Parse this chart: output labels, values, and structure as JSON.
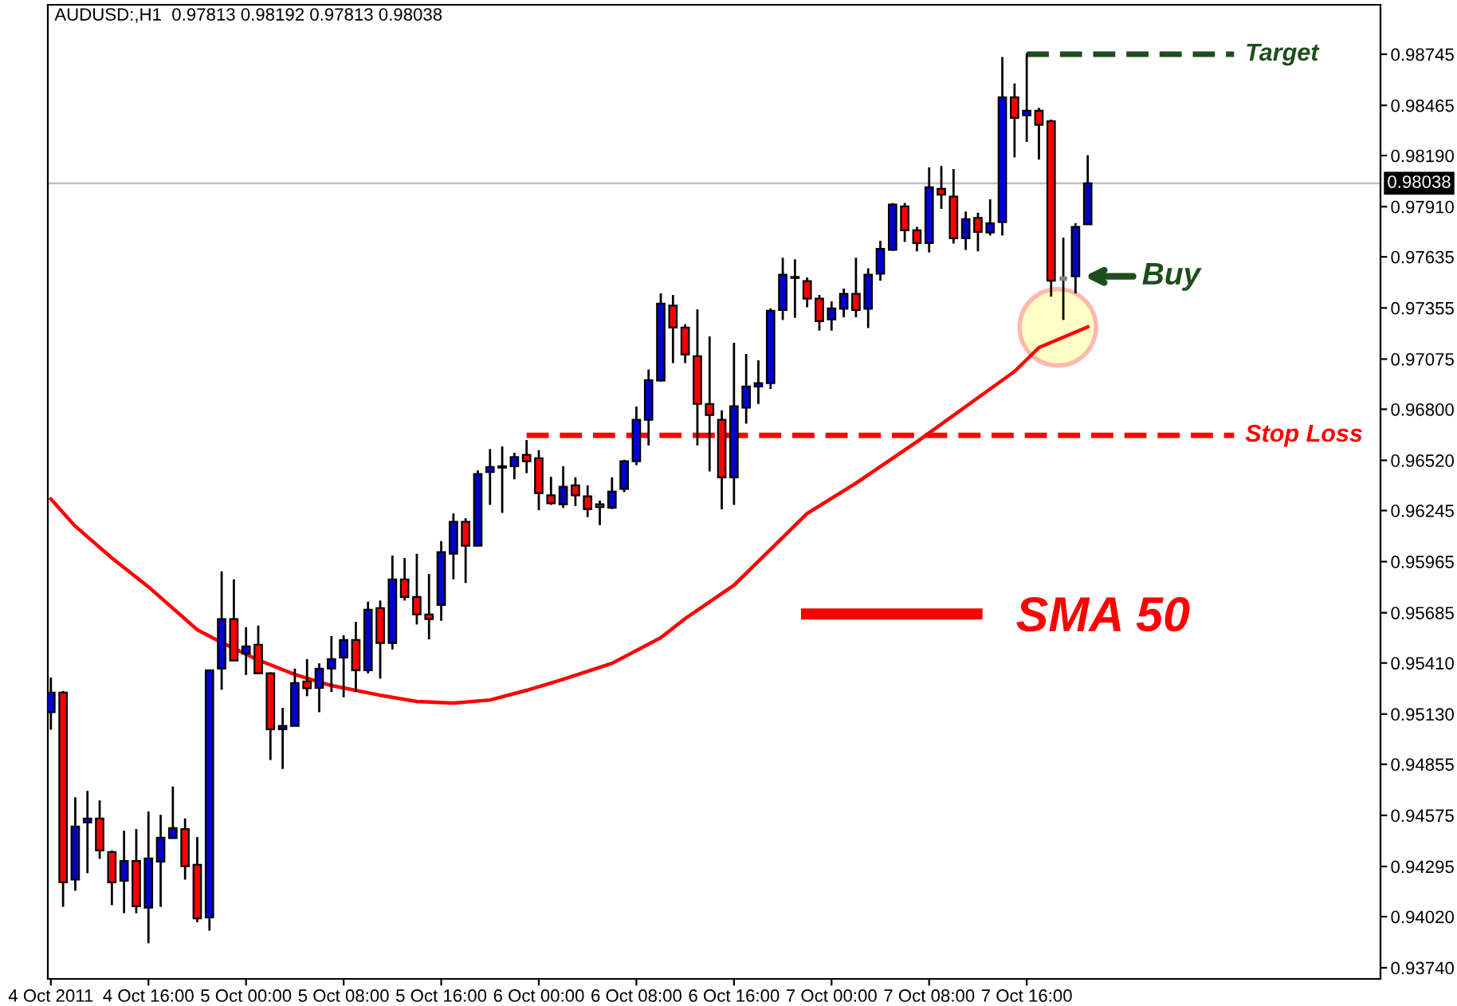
{
  "chart_data": {
    "type": "candlestick",
    "title": "AUDUSD:,H1  0.97813 0.98192 0.97813 0.98038",
    "x": [
      "2011-10-04T08:00",
      "2011-10-04T09:00",
      "2011-10-04T10:00",
      "2011-10-04T11:00",
      "2011-10-04T12:00",
      "2011-10-04T13:00",
      "2011-10-04T14:00",
      "2011-10-04T15:00",
      "2011-10-04T16:00",
      "2011-10-04T17:00",
      "2011-10-04T18:00",
      "2011-10-04T19:00",
      "2011-10-04T20:00",
      "2011-10-04T21:00",
      "2011-10-04T22:00",
      "2011-10-04T23:00",
      "2011-10-05T00:00",
      "2011-10-05T01:00",
      "2011-10-05T02:00",
      "2011-10-05T03:00",
      "2011-10-05T04:00",
      "2011-10-05T05:00",
      "2011-10-05T06:00",
      "2011-10-05T07:00",
      "2011-10-05T08:00",
      "2011-10-05T09:00",
      "2011-10-05T10:00",
      "2011-10-05T11:00",
      "2011-10-05T12:00",
      "2011-10-05T13:00",
      "2011-10-05T14:00",
      "2011-10-05T15:00",
      "2011-10-05T16:00",
      "2011-10-05T17:00",
      "2011-10-05T18:00",
      "2011-10-05T19:00",
      "2011-10-05T20:00",
      "2011-10-05T21:00",
      "2011-10-05T22:00",
      "2011-10-05T23:00",
      "2011-10-06T00:00",
      "2011-10-06T01:00",
      "2011-10-06T02:00",
      "2011-10-06T03:00",
      "2011-10-06T04:00",
      "2011-10-06T05:00",
      "2011-10-06T06:00",
      "2011-10-06T07:00",
      "2011-10-06T08:00",
      "2011-10-06T09:00",
      "2011-10-06T10:00",
      "2011-10-06T11:00",
      "2011-10-06T12:00",
      "2011-10-06T13:00",
      "2011-10-06T14:00",
      "2011-10-06T15:00",
      "2011-10-06T16:00",
      "2011-10-06T17:00",
      "2011-10-06T18:00",
      "2011-10-06T19:00",
      "2011-10-06T20:00",
      "2011-10-06T21:00",
      "2011-10-06T22:00",
      "2011-10-06T23:00",
      "2011-10-07T00:00",
      "2011-10-07T01:00",
      "2011-10-07T02:00",
      "2011-10-07T03:00",
      "2011-10-07T04:00",
      "2011-10-07T05:00",
      "2011-10-07T06:00",
      "2011-10-07T07:00",
      "2011-10-07T08:00",
      "2011-10-07T09:00",
      "2011-10-07T10:00",
      "2011-10-07T11:00",
      "2011-10-07T12:00",
      "2011-10-07T13:00",
      "2011-10-07T14:00",
      "2011-10-07T15:00",
      "2011-10-07T16:00",
      "2011-10-07T17:00",
      "2011-10-07T18:00",
      "2011-10-07T19:00",
      "2011-10-07T20:00",
      "2011-10-07T21:00"
    ],
    "ohlc": [
      [
        0.9514,
        0.9533,
        0.95044,
        0.95248
      ],
      [
        0.95248,
        0.95257,
        0.94074,
        0.94208
      ],
      [
        0.94223,
        0.94674,
        0.94162,
        0.94514
      ],
      [
        0.94537,
        0.94709,
        0.94258,
        0.94558
      ],
      [
        0.94558,
        0.94657,
        0.94337,
        0.94383
      ],
      [
        0.94374,
        0.94383,
        0.94083,
        0.94208
      ],
      [
        0.94217,
        0.94491,
        0.94039,
        0.94325
      ],
      [
        0.94325,
        0.945,
        0.94039,
        0.94077
      ],
      [
        0.94069,
        0.94596,
        0.93874,
        0.94339
      ],
      [
        0.94322,
        0.94578,
        0.94074,
        0.94453
      ],
      [
        0.9445,
        0.94733,
        0.9445,
        0.94505
      ],
      [
        0.945,
        0.94558,
        0.94223,
        0.94296
      ],
      [
        0.94304,
        0.94456,
        0.9399,
        0.9401
      ],
      [
        0.94016,
        0.9537,
        0.93943,
        0.9537
      ],
      [
        0.95379,
        0.95912,
        0.95263,
        0.9565
      ],
      [
        0.9565,
        0.95868,
        0.95423,
        0.95423
      ],
      [
        0.95461,
        0.95606,
        0.95344,
        0.95501
      ],
      [
        0.9551,
        0.95615,
        0.95353,
        0.95353
      ],
      [
        0.95353,
        0.95358,
        0.94878,
        0.95047
      ],
      [
        0.95047,
        0.95164,
        0.94829,
        0.95065
      ],
      [
        0.95065,
        0.95379,
        0.95065,
        0.953
      ],
      [
        0.95309,
        0.95431,
        0.95228,
        0.95271
      ],
      [
        0.95274,
        0.95408,
        0.9514,
        0.95379
      ],
      [
        0.95379,
        0.95557,
        0.95251,
        0.95431
      ],
      [
        0.9544,
        0.95562,
        0.95222,
        0.95536
      ],
      [
        0.95536,
        0.95635,
        0.95251,
        0.9537
      ],
      [
        0.9537,
        0.95746,
        0.95353,
        0.95702
      ],
      [
        0.95711,
        0.95752,
        0.95324,
        0.95519
      ],
      [
        0.95519,
        0.95999,
        0.95484,
        0.95868
      ],
      [
        0.95868,
        0.95985,
        0.95752,
        0.95772
      ],
      [
        0.95772,
        0.96008,
        0.95621,
        0.95676
      ],
      [
        0.95676,
        0.95897,
        0.95539,
        0.9565
      ],
      [
        0.95728,
        0.96078,
        0.95641,
        0.96017
      ],
      [
        0.96008,
        0.96229,
        0.95868,
        0.96183
      ],
      [
        0.96183,
        0.96203,
        0.95848,
        0.96052
      ],
      [
        0.96052,
        0.96465,
        0.96052,
        0.96445
      ],
      [
        0.96456,
        0.96582,
        0.96276,
        0.96483
      ],
      [
        0.9648,
        0.96596,
        0.96232,
        0.96488
      ],
      [
        0.96488,
        0.96561,
        0.96416,
        0.96538
      ],
      [
        0.9655,
        0.96631,
        0.9645,
        0.96515
      ],
      [
        0.96532,
        0.96576,
        0.96247,
        0.9634
      ],
      [
        0.96328,
        0.9643,
        0.96276,
        0.96285
      ],
      [
        0.96279,
        0.96488,
        0.96259,
        0.96375
      ],
      [
        0.96383,
        0.96427,
        0.9627,
        0.96328
      ],
      [
        0.96323,
        0.96383,
        0.96209,
        0.96253
      ],
      [
        0.96279,
        0.96299,
        0.96165,
        0.96264
      ],
      [
        0.96261,
        0.96427,
        0.96253,
        0.96349
      ],
      [
        0.96363,
        0.96523,
        0.96346,
        0.96515
      ],
      [
        0.96515,
        0.96815,
        0.96494,
        0.96742
      ],
      [
        0.96742,
        0.97018,
        0.96602,
        0.9696
      ],
      [
        0.96957,
        0.97435,
        0.96951,
        0.97379
      ],
      [
        0.97368,
        0.97426,
        0.97053,
        0.97248
      ],
      [
        0.97248,
        0.97266,
        0.97053,
        0.971
      ],
      [
        0.97091,
        0.97347,
        0.96602,
        0.96829
      ],
      [
        0.96829,
        0.97199,
        0.96459,
        0.96768
      ],
      [
        0.96742,
        0.96794,
        0.96252,
        0.96427
      ],
      [
        0.96427,
        0.97164,
        0.96276,
        0.96817
      ],
      [
        0.96809,
        0.97103,
        0.96721,
        0.96925
      ],
      [
        0.96925,
        0.97068,
        0.96829,
        0.96943
      ],
      [
        0.96943,
        0.97353,
        0.96911,
        0.97339
      ],
      [
        0.97344,
        0.9763,
        0.97289,
        0.97537
      ],
      [
        0.97519,
        0.97621,
        0.97301,
        0.97525
      ],
      [
        0.97502,
        0.97522,
        0.97359,
        0.97406
      ],
      [
        0.97406,
        0.97426,
        0.97231,
        0.97283
      ],
      [
        0.97292,
        0.97391,
        0.97231,
        0.97353
      ],
      [
        0.9735,
        0.97461,
        0.97304,
        0.97432
      ],
      [
        0.97432,
        0.9763,
        0.97304,
        0.97344
      ],
      [
        0.9735,
        0.97572,
        0.97245,
        0.97537
      ],
      [
        0.97542,
        0.97723,
        0.97504,
        0.97679
      ],
      [
        0.97673,
        0.9793,
        0.97668,
        0.97921
      ],
      [
        0.97912,
        0.9793,
        0.97717,
        0.97781
      ],
      [
        0.97781,
        0.97799,
        0.97665,
        0.97711
      ],
      [
        0.97711,
        0.98125,
        0.97659,
        0.98017
      ],
      [
        0.98008,
        0.98133,
        0.97898,
        0.97976
      ],
      [
        0.97965,
        0.98116,
        0.97708,
        0.97737
      ],
      [
        0.97737,
        0.97883,
        0.97673,
        0.97842
      ],
      [
        0.97848,
        0.97877,
        0.97665,
        0.97772
      ],
      [
        0.97769,
        0.9795,
        0.97752,
        0.97819
      ],
      [
        0.97825,
        0.9873,
        0.97752,
        0.98509
      ],
      [
        0.98509,
        0.98585,
        0.9818,
        0.98396
      ],
      [
        0.9841,
        0.98751,
        0.98265,
        0.98436
      ],
      [
        0.98436,
        0.98451,
        0.98168,
        0.98358
      ],
      [
        0.98378,
        0.98387,
        0.97417,
        0.97504
      ],
      [
        0.97516,
        0.9774,
        0.97289,
        0.97516
      ],
      [
        0.97528,
        0.97819,
        0.97435,
        0.97799
      ],
      [
        0.97813,
        0.98192,
        0.97813,
        0.98038
      ]
    ],
    "colors": [
      "#0000cc",
      "#ff0000",
      "#0000cc",
      "#0000cc",
      "#ff0000",
      "#ff0000",
      "#0000cc",
      "#ff0000",
      "#0000cc",
      "#0000cc",
      "#0000cc",
      "#ff0000",
      "#ff0000",
      "#0000cc",
      "#0000cc",
      "#ff0000",
      "#0000cc",
      "#ff0000",
      "#ff0000",
      "#0000cc",
      "#0000cc",
      "#ff0000",
      "#0000cc",
      "#0000cc",
      "#0000cc",
      "#ff0000",
      "#0000cc",
      "#ff0000",
      "#0000cc",
      "#ff0000",
      "#ff0000",
      "#ff0000",
      "#0000cc",
      "#0000cc",
      "#ff0000",
      "#0000cc",
      "#0000cc",
      "#0000cc",
      "#0000cc",
      "#ff0000",
      "#ff0000",
      "#ff0000",
      "#0000cc",
      "#ff0000",
      "#ff0000",
      "#ff0000",
      "#0000cc",
      "#0000cc",
      "#0000cc",
      "#0000cc",
      "#0000cc",
      "#ff0000",
      "#ff0000",
      "#ff0000",
      "#ff0000",
      "#ff0000",
      "#0000cc",
      "#0000cc",
      "#0000cc",
      "#0000cc",
      "#0000cc",
      "#0000cc",
      "#ff0000",
      "#ff0000",
      "#0000cc",
      "#0000cc",
      "#ff0000",
      "#0000cc",
      "#0000cc",
      "#0000cc",
      "#ff0000",
      "#ff0000",
      "#0000cc",
      "#ff0000",
      "#ff0000",
      "#0000cc",
      "#ff0000",
      "#0000cc",
      "#0000cc",
      "#ff0000",
      "#0000cc",
      "#ff0000",
      "#ff0000",
      "#808080",
      "#0000cc",
      "#0000cc"
    ],
    "series": [
      {
        "name": "SMA 50",
        "type": "line",
        "color": "#ff0000",
        "line_style": "solid",
        "x": [
          "2011-10-04T08:00",
          "2011-10-04T10:00",
          "2011-10-04T13:00",
          "2011-10-04T16:00",
          "2011-10-04T20:00",
          "2011-10-04T22:00",
          "2011-10-05T01:00",
          "2011-10-05T04:00",
          "2011-10-05T07:00",
          "2011-10-05T11:00",
          "2011-10-05T14:00",
          "2011-10-05T17:00",
          "2011-10-05T20:00",
          "2011-10-05T23:00",
          "2011-10-06T02:00",
          "2011-10-06T06:00",
          "2011-10-06T10:00",
          "2011-10-06T12:00",
          "2011-10-06T16:00",
          "2011-10-06T20:00",
          "2011-10-06T22:00",
          "2011-10-07T02:00",
          "2011-10-07T07:00",
          "2011-10-07T11:00",
          "2011-10-07T15:00",
          "2011-10-07T17:00",
          "2011-10-07T21:00"
        ],
        "values": [
          0.96308,
          0.96159,
          0.95985,
          0.95827,
          0.95592,
          0.95522,
          0.95426,
          0.95347,
          0.95286,
          0.95233,
          0.95199,
          0.9519,
          0.95207,
          0.9526,
          0.95321,
          0.95408,
          0.95548,
          0.95653,
          0.95836,
          0.96098,
          0.96229,
          0.96395,
          0.96622,
          0.96815,
          0.97007,
          0.97138,
          0.97251
        ]
      },
      {
        "name": "Target",
        "type": "line",
        "color": "#1e4d1e",
        "line_style": "dashed",
        "x": [
          "2011-10-07T16:00",
          "2011-10-08T09:00"
        ],
        "values": [
          0.98745,
          0.98745
        ]
      },
      {
        "name": "Stop Loss",
        "type": "line",
        "color": "#ff0000",
        "line_style": "dashed",
        "x": [
          "2011-10-05T23:00",
          "2011-10-08T09:00"
        ],
        "values": [
          0.96657,
          0.96657
        ]
      }
    ],
    "ref_lines": [
      {
        "axis": "y",
        "value": 0.98038,
        "label": "0.98038",
        "color": "#c0c0c0"
      }
    ],
    "annotations": [
      {
        "text": "Buy",
        "x": "2011-10-07T20:00",
        "y": 0.97528
      }
    ],
    "xlim": [
      "2011-10-04T07:45",
      "2011-10-08T21:00"
    ],
    "xticks": [
      {
        "value": "2011-10-04T08:00",
        "label": "4 Oct 2011"
      },
      {
        "value": "2011-10-04T16:00",
        "label": "4 Oct 16:00"
      },
      {
        "value": "2011-10-05T00:00",
        "label": "5 Oct 00:00"
      },
      {
        "value": "2011-10-05T08:00",
        "label": "5 Oct 08:00"
      },
      {
        "value": "2011-10-05T16:00",
        "label": "5 Oct 16:00"
      },
      {
        "value": "2011-10-06T00:00",
        "label": "6 Oct 00:00"
      },
      {
        "value": "2011-10-06T08:00",
        "label": "6 Oct 08:00"
      },
      {
        "value": "2011-10-06T16:00",
        "label": "6 Oct 16:00"
      },
      {
        "value": "2011-10-07T00:00",
        "label": "7 Oct 00:00"
      },
      {
        "value": "2011-10-07T08:00",
        "label": "7 Oct 08:00"
      },
      {
        "value": "2011-10-07T16:00",
        "label": "7 Oct 16:00"
      }
    ],
    "ylim": [
      0.93679,
      0.99016
    ],
    "yticks": [
      0.98745,
      0.98465,
      {
        "value": 0.9819,
        "label": "0.98190"
      },
      {
        "value": 0.9791,
        "label": "0.97910"
      },
      0.97635,
      0.97355,
      0.97075,
      {
        "value": 0.968,
        "label": "0.96800"
      },
      {
        "value": 0.9652,
        "label": "0.96520"
      },
      0.96245,
      0.95965,
      0.95685,
      {
        "value": 0.9541,
        "label": "0.95410"
      },
      {
        "value": 0.9513,
        "label": "0.95130"
      },
      0.94855,
      0.94575,
      0.94295,
      {
        "value": 0.9402,
        "label": "0.94020"
      },
      {
        "value": 0.9374,
        "label": "0.93740"
      }
    ],
    "legend": "right",
    "grid": false
  }
}
